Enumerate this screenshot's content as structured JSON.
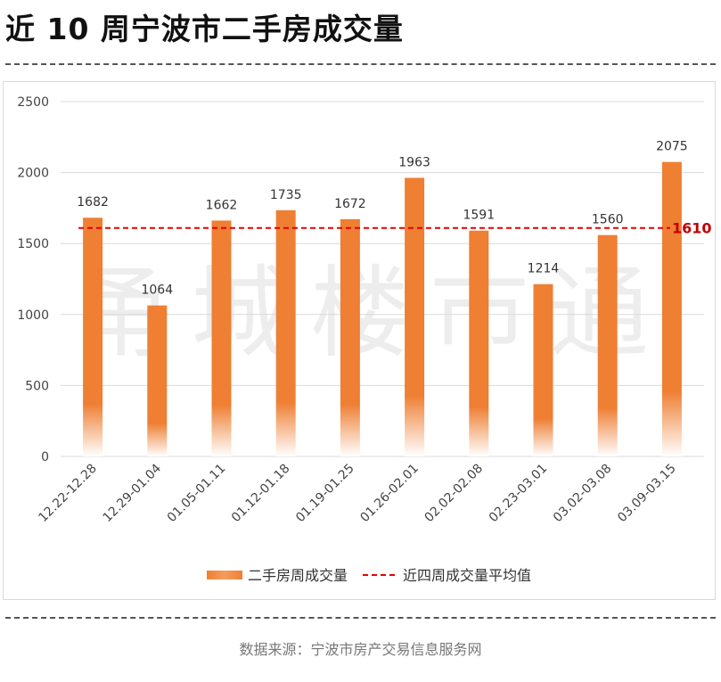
{
  "title": "近 10 周宁波市二手房成交量",
  "source": "数据来源：宁波市房产交易信息服务网",
  "watermark": "甬城楼市通",
  "colors": {
    "bar_top": "#ee7f33",
    "bar_bottom": "#ffffff",
    "avg_line": "#e60000",
    "grid": "#d9d9d9",
    "axis_text": "#444444",
    "label_text": "#333333"
  },
  "chart_data": {
    "type": "bar",
    "title": "近 10 周宁波市二手房成交量",
    "xlabel": "",
    "ylabel": "",
    "ylim": [
      0,
      2500
    ],
    "yticks": [
      0,
      500,
      1000,
      1500,
      2000,
      2500
    ],
    "categories": [
      "12.22-12.28",
      "12.29-01.04",
      "01.05-01.11",
      "01.12-01.18",
      "01.19-01.25",
      "01.26-02.01",
      "02.02-02.08",
      "02.23-03.01",
      "03.02-03.08",
      "03.09-03.15"
    ],
    "series": [
      {
        "name": "二手房周成交量",
        "values": [
          1682,
          1064,
          1662,
          1735,
          1672,
          1963,
          1591,
          1214,
          1560,
          2075
        ]
      }
    ],
    "reference_line": {
      "name": "近四周成交量平均值",
      "value": 1610
    },
    "legend": [
      {
        "label": "二手房周成交量",
        "kind": "bar"
      },
      {
        "label": "近四周成交量平均值",
        "kind": "dashed-line"
      }
    ],
    "legend_position": "bottom",
    "grid": true
  }
}
